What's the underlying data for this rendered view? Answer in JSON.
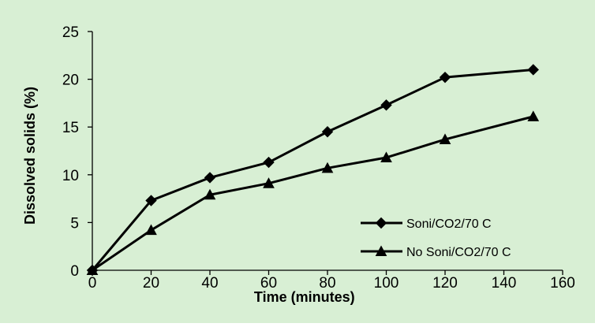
{
  "chart_data": {
    "type": "line",
    "title": "",
    "xlabel": "Time (minutes)",
    "ylabel": "Dissolved solids (%)",
    "xlim": [
      0,
      160
    ],
    "ylim": [
      0,
      25
    ],
    "x_ticks": [
      "0",
      "20",
      "40",
      "60",
      "80",
      "100",
      "120",
      "140",
      "160"
    ],
    "y_ticks": [
      "0",
      "5",
      "10",
      "15",
      "20",
      "25"
    ],
    "grid": false,
    "legend_position": "bottom-right",
    "plot_background": "#D8EFD4",
    "outer_background": "#FFFFFF",
    "series": [
      {
        "name": "Soni/CO2/70 C",
        "marker": "diamond",
        "color": "#000000",
        "x": [
          0,
          20,
          40,
          60,
          80,
          100,
          120,
          150
        ],
        "y": [
          0,
          7.3,
          9.7,
          11.3,
          14.5,
          17.3,
          20.2,
          21.0
        ]
      },
      {
        "name": "No Soni/CO2/70 C",
        "marker": "triangle",
        "color": "#000000",
        "x": [
          0,
          20,
          40,
          60,
          80,
          100,
          120,
          150
        ],
        "y": [
          0,
          4.2,
          7.9,
          9.1,
          10.7,
          11.8,
          13.7,
          16.1
        ]
      }
    ]
  }
}
